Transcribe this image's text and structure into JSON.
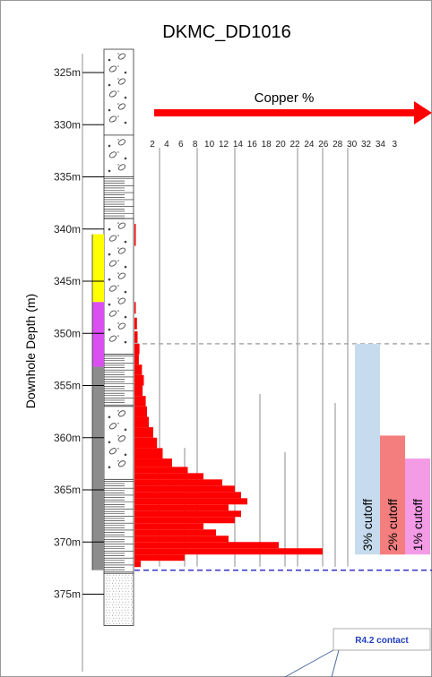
{
  "chart_data": {
    "type": "bar",
    "orientation": "horizontal",
    "title": "DKMC_DD1016",
    "xlabel": "Copper %",
    "ylabel": "Downhole Depth (m)",
    "x_ticks": [
      "2",
      "4",
      "6",
      "8",
      "10",
      "12",
      "14",
      "16",
      "18",
      "20",
      "22",
      "24",
      "26",
      "28",
      "30",
      "32",
      "34",
      "3"
    ],
    "y_ticks": [
      "325m",
      "330m",
      "335m",
      "340m",
      "345m",
      "350m",
      "355m",
      "360m",
      "365m",
      "370m",
      "375m"
    ],
    "ylim": [
      322,
      378
    ],
    "xlim": [
      0,
      36
    ],
    "copper_profile": [
      {
        "depth": 339.5,
        "cu": 0.2
      },
      {
        "depth": 340.5,
        "cu": 0.1
      },
      {
        "depth": 347.0,
        "cu": 0.2
      },
      {
        "depth": 348.5,
        "cu": 0.4
      },
      {
        "depth": 349.8,
        "cu": 0.5
      },
      {
        "depth": 351.0,
        "cu": 0.8
      },
      {
        "depth": 352.0,
        "cu": 0.7
      },
      {
        "depth": 353.0,
        "cu": 1.2
      },
      {
        "depth": 354.0,
        "cu": 1.5
      },
      {
        "depth": 355.0,
        "cu": 1.3
      },
      {
        "depth": 356.0,
        "cu": 1.8
      },
      {
        "depth": 357.0,
        "cu": 2.0
      },
      {
        "depth": 358.0,
        "cu": 2.3
      },
      {
        "depth": 359.0,
        "cu": 3.0
      },
      {
        "depth": 360.0,
        "cu": 3.6
      },
      {
        "depth": 361.0,
        "cu": 4.5
      },
      {
        "depth": 362.0,
        "cu": 6.0
      },
      {
        "depth": 362.8,
        "cu": 8.5
      },
      {
        "depth": 363.4,
        "cu": 11.0
      },
      {
        "depth": 364.0,
        "cu": 14.0
      },
      {
        "depth": 364.6,
        "cu": 16.0
      },
      {
        "depth": 365.2,
        "cu": 17.0
      },
      {
        "depth": 365.8,
        "cu": 18.0
      },
      {
        "depth": 366.4,
        "cu": 15.0
      },
      {
        "depth": 367.0,
        "cu": 17.0
      },
      {
        "depth": 367.6,
        "cu": 16.0
      },
      {
        "depth": 368.2,
        "cu": 11.0
      },
      {
        "depth": 368.8,
        "cu": 13.0
      },
      {
        "depth": 369.4,
        "cu": 15.0
      },
      {
        "depth": 370.0,
        "cu": 23.0
      },
      {
        "depth": 370.6,
        "cu": 30.0
      },
      {
        "depth": 371.2,
        "cu": 8.0
      },
      {
        "depth": 371.8,
        "cu": 1.0
      }
    ],
    "cutoff_line_depth": 351.0,
    "contact_depth": 372.7,
    "cutoffs": [
      {
        "label": "3% cutoff",
        "top_depth": 351.0,
        "bottom_depth": 371.2,
        "color": "#c6dcee"
      },
      {
        "label": "2% cutoff",
        "top_depth": 359.8,
        "bottom_depth": 371.2,
        "color": "#f47d7d"
      },
      {
        "label": "1% cutoff",
        "top_depth": 362.0,
        "bottom_depth": 371.2,
        "color": "#f49be6"
      }
    ],
    "contact_label": "R4.2 contact",
    "lithology_column": [
      {
        "top": 322,
        "bottom": 331,
        "pattern": "conglomerate"
      },
      {
        "top": 331,
        "bottom": 335,
        "pattern": "conglomerate"
      },
      {
        "top": 335,
        "bottom": 339,
        "pattern": "laminated"
      },
      {
        "top": 339,
        "bottom": 352,
        "pattern": "conglomerate"
      },
      {
        "top": 352,
        "bottom": 357,
        "pattern": "laminated"
      },
      {
        "top": 357,
        "bottom": 364,
        "pattern": "conglomerate"
      },
      {
        "top": 364,
        "bottom": 373,
        "pattern": "laminated"
      },
      {
        "top": 373,
        "bottom": 378,
        "pattern": "sandstone"
      }
    ],
    "domain_bar": [
      {
        "top": 340.5,
        "bottom": 347.0,
        "color": "#ffff00"
      },
      {
        "top": 347.0,
        "bottom": 353.2,
        "color": "#d94ff0"
      },
      {
        "top": 353.2,
        "bottom": 372.7,
        "color": "#8c8c8c"
      }
    ],
    "colors": {
      "copper": "#ff0000",
      "arrow": "#ff0000",
      "contact_line": "#3333cc",
      "contact_label": "#1f3fbf",
      "cutoff_line": "#aaaaaa",
      "grid": "#8c8c8c"
    }
  }
}
